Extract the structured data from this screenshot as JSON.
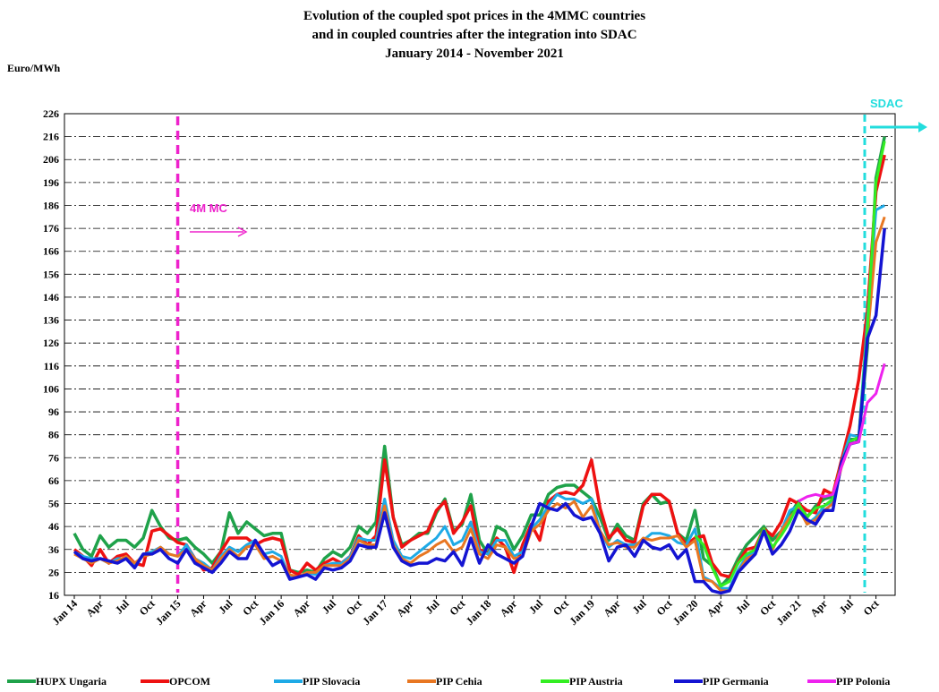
{
  "chart_data": {
    "type": "line",
    "title": [
      "Evolution of the coupled spot prices in the 4MMC countries",
      "and in coupled countries after the integration into SDAC",
      "January 2014 - November 2021"
    ],
    "y_label": "Euro/MWh",
    "annotations": [
      "4M MC",
      "SDAC"
    ],
    "categories": [
      "Jan 14",
      null,
      null,
      "Apr",
      null,
      null,
      "Jul",
      null,
      null,
      "Oct",
      null,
      null,
      "Jan 15",
      null,
      null,
      "Apr",
      null,
      null,
      "Jul",
      null,
      null,
      "Oct",
      null,
      null,
      "Jan 16",
      null,
      null,
      "Apr",
      null,
      null,
      "Jul",
      null,
      null,
      "Oct",
      null,
      null,
      "Jan 17",
      null,
      null,
      "Apr",
      null,
      null,
      "Jul",
      null,
      null,
      "Oct",
      null,
      null,
      "Jan 18",
      null,
      null,
      "Apr",
      null,
      null,
      "Jul",
      null,
      null,
      "Oct",
      null,
      null,
      "Jan 19",
      null,
      null,
      "Apr",
      null,
      null,
      "Jul",
      null,
      null,
      "Oct",
      null,
      null,
      "Jan 20",
      null,
      null,
      "Apr",
      null,
      null,
      "Jul",
      null,
      null,
      "Oct",
      null,
      null,
      "Jan 21",
      null,
      null,
      "Apr",
      null,
      null,
      "Jul",
      null,
      null,
      "Oct",
      null
    ],
    "ylim": [
      16,
      226
    ],
    "yticks": [
      16,
      26,
      36,
      46,
      56,
      66,
      76,
      86,
      96,
      106,
      116,
      126,
      136,
      146,
      156,
      166,
      176,
      186,
      196,
      206,
      216,
      226
    ],
    "grid": true,
    "series": [
      {
        "name": "HUPX  Ungaria",
        "color": "#1fa24a",
        "values": [
          43,
          36,
          33,
          42,
          37,
          40,
          40,
          37,
          41,
          53,
          46,
          41,
          40,
          41,
          37,
          34,
          30,
          35,
          52,
          43,
          48,
          45,
          42,
          43,
          43,
          27,
          26,
          27,
          26,
          32,
          35,
          33,
          37,
          46,
          43,
          48,
          81,
          50,
          38,
          40,
          43,
          43,
          52,
          58,
          44,
          47,
          60,
          40,
          34,
          46,
          44,
          36,
          42,
          51,
          51,
          60,
          63,
          64,
          64,
          61,
          58,
          50,
          40,
          47,
          42,
          40,
          56,
          60,
          56,
          57,
          43,
          40,
          53,
          32,
          29,
          20,
          24,
          32,
          38,
          42,
          46,
          40,
          44,
          51,
          57,
          50,
          55,
          58,
          59,
          74,
          84,
          84,
          124,
          198,
          216
        ]
      },
      {
        "name": "OPCOM",
        "color": "#ee1111",
        "values": [
          36,
          33,
          29,
          36,
          30,
          33,
          34,
          30,
          29,
          44,
          45,
          42,
          39,
          38,
          32,
          27,
          28,
          35,
          41,
          41,
          41,
          38,
          40,
          41,
          40,
          27,
          25,
          30,
          27,
          30,
          32,
          30,
          33,
          42,
          38,
          42,
          75,
          50,
          37,
          40,
          42,
          44,
          53,
          57,
          43,
          48,
          55,
          36,
          34,
          41,
          37,
          26,
          38,
          47,
          40,
          57,
          60,
          61,
          60,
          64,
          75,
          54,
          41,
          45,
          40,
          39,
          55,
          60,
          60,
          57,
          43,
          38,
          41,
          42,
          30,
          25,
          24,
          30,
          36,
          37,
          45,
          42,
          48,
          58,
          56,
          53,
          52,
          62,
          60,
          75,
          90,
          110,
          140,
          192,
          208
        ]
      },
      {
        "name": "PIP Slovacia",
        "color": "#1eaae6",
        "values": [
          35,
          33,
          32,
          32,
          30,
          32,
          32,
          29,
          34,
          35,
          37,
          34,
          33,
          38,
          32,
          30,
          27,
          33,
          37,
          35,
          38,
          40,
          34,
          35,
          33,
          24,
          24,
          26,
          25,
          29,
          30,
          30,
          33,
          41,
          40,
          40,
          58,
          40,
          33,
          32,
          35,
          38,
          41,
          46,
          38,
          40,
          48,
          35,
          34,
          40,
          40,
          33,
          35,
          45,
          49,
          55,
          60,
          58,
          58,
          56,
          58,
          44,
          37,
          40,
          38,
          38,
          40,
          43,
          43,
          42,
          39,
          38,
          45,
          24,
          22,
          19,
          19,
          27,
          33,
          35,
          44,
          36,
          44,
          53,
          55,
          47,
          50,
          55,
          57,
          74,
          86,
          85,
          136,
          184,
          186
        ]
      },
      {
        "name": "PIP Cehia",
        "color": "#e87722",
        "values": [
          34,
          32,
          30,
          32,
          30,
          31,
          33,
          30,
          33,
          34,
          37,
          34,
          33,
          36,
          32,
          29,
          27,
          32,
          36,
          33,
          37,
          38,
          32,
          33,
          31,
          25,
          24,
          26,
          26,
          29,
          29,
          29,
          32,
          40,
          38,
          38,
          55,
          38,
          32,
          30,
          33,
          35,
          38,
          40,
          35,
          37,
          45,
          34,
          32,
          38,
          37,
          32,
          33,
          44,
          47,
          53,
          56,
          54,
          57,
          50,
          55,
          44,
          38,
          39,
          37,
          37,
          41,
          40,
          41,
          41,
          42,
          37,
          40,
          23,
          22,
          18,
          18,
          26,
          32,
          34,
          44,
          36,
          44,
          50,
          54,
          47,
          49,
          53,
          56,
          72,
          82,
          83,
          128,
          170,
          181
        ]
      },
      {
        "name": "PIP Austria",
        "color": "#33ee22",
        "values": [
          null,
          null,
          null,
          null,
          null,
          null,
          null,
          null,
          null,
          null,
          null,
          null,
          null,
          null,
          null,
          null,
          null,
          null,
          null,
          null,
          null,
          null,
          null,
          null,
          null,
          null,
          null,
          null,
          null,
          null,
          null,
          null,
          null,
          null,
          null,
          null,
          null,
          null,
          null,
          null,
          null,
          null,
          null,
          null,
          null,
          null,
          null,
          null,
          null,
          null,
          null,
          null,
          null,
          null,
          null,
          null,
          null,
          null,
          null,
          null,
          null,
          null,
          null,
          null,
          null,
          null,
          null,
          null,
          null,
          null,
          null,
          null,
          42,
          38,
          28,
          20,
          22,
          30,
          34,
          36,
          45,
          37,
          42,
          48,
          56,
          50,
          54,
          55,
          58,
          74,
          83,
          85,
          132,
          196,
          214
        ]
      },
      {
        "name": "PIP Germania",
        "color": "#1414d2",
        "values": [
          35,
          32,
          31,
          32,
          31,
          30,
          32,
          28,
          34,
          34,
          36,
          32,
          30,
          36,
          30,
          28,
          26,
          30,
          35,
          32,
          32,
          40,
          34,
          29,
          31,
          23,
          24,
          25,
          23,
          28,
          27,
          28,
          31,
          38,
          37,
          37,
          52,
          37,
          31,
          29,
          30,
          30,
          32,
          31,
          35,
          29,
          41,
          30,
          38,
          34,
          32,
          30,
          33,
          46,
          56,
          54,
          53,
          56,
          51,
          49,
          50,
          43,
          31,
          37,
          38,
          33,
          40,
          37,
          36,
          38,
          32,
          36,
          22,
          22,
          18,
          17,
          18,
          26,
          30,
          34,
          44,
          34,
          38,
          44,
          53,
          49,
          47,
          53,
          53,
          74,
          82,
          83,
          128,
          138,
          176
        ]
      },
      {
        "name": "PIP Polonia",
        "color": "#ee22ee",
        "values": [
          null,
          null,
          null,
          null,
          null,
          null,
          null,
          null,
          null,
          null,
          null,
          null,
          null,
          null,
          null,
          null,
          null,
          null,
          null,
          null,
          null,
          null,
          null,
          null,
          null,
          null,
          null,
          null,
          null,
          null,
          null,
          null,
          null,
          null,
          null,
          null,
          null,
          null,
          null,
          null,
          null,
          null,
          null,
          null,
          null,
          null,
          null,
          null,
          null,
          null,
          null,
          null,
          null,
          null,
          null,
          null,
          null,
          null,
          null,
          null,
          null,
          null,
          null,
          null,
          null,
          null,
          null,
          null,
          null,
          null,
          null,
          null,
          null,
          null,
          null,
          null,
          null,
          null,
          null,
          null,
          null,
          null,
          null,
          null,
          57,
          59,
          60,
          59,
          60,
          72,
          82,
          83,
          100,
          104,
          117
        ]
      }
    ]
  }
}
